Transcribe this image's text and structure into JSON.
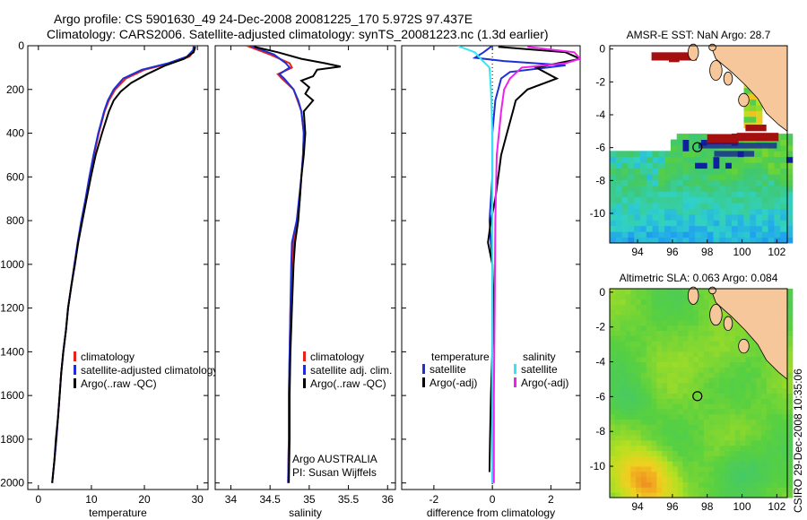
{
  "header": {
    "line1": "Argo profile: CS 5901630_49 24-Dec-2008 20081225_170 5.972S 97.437E",
    "line2": "Climatology: CARS2006. Satellite-adjusted climatology: synTS_20081223.nc (1.3d earlier)"
  },
  "side_text": "CSIRO 29-Dec-2008 10:35:06",
  "colors": {
    "climatology": "#e8231c",
    "satellite": "#1f2fd6",
    "argo": "#000000",
    "salinity_satellite": "#33e6f2",
    "salinity_argo": "#ee22ee",
    "land": "#f6c79b"
  },
  "chart_data": [
    {
      "id": "temperature",
      "type": "line",
      "xlabel": "temperature",
      "xlim": [
        -2,
        32
      ],
      "ylim": [
        2030,
        0
      ],
      "xticks": [
        "0",
        "10",
        "20",
        "30"
      ],
      "xtick_values": [
        0,
        10,
        20,
        30
      ],
      "yticks": [
        "0",
        "200",
        "400",
        "600",
        "800",
        "1000",
        "1200",
        "1400",
        "1600",
        "1800",
        "2000"
      ],
      "ytick_values": [
        0,
        200,
        400,
        600,
        800,
        1000,
        1200,
        1400,
        1600,
        1800,
        2000
      ],
      "legend": [
        "climatology",
        "satellite-adjusted climatology",
        "Argo(..raw -QC)"
      ],
      "series": [
        {
          "name": "climatology",
          "color_key": "climatology",
          "points": [
            [
              29.5,
              0
            ],
            [
              29.4,
              20
            ],
            [
              28.5,
              50
            ],
            [
              25,
              80
            ],
            [
              20,
              110
            ],
            [
              16.5,
              150
            ],
            [
              14.5,
              200
            ],
            [
              13.3,
              250
            ],
            [
              12.5,
              300
            ],
            [
              11.4,
              400
            ],
            [
              10.5,
              500
            ],
            [
              9.7,
              600
            ],
            [
              9,
              700
            ],
            [
              8.2,
              800
            ],
            [
              7.5,
              900
            ],
            [
              6.8,
              1000
            ],
            [
              6.2,
              1100
            ],
            [
              5.6,
              1200
            ],
            [
              5.2,
              1300
            ],
            [
              4.7,
              1400
            ],
            [
              4.3,
              1500
            ],
            [
              4,
              1600
            ],
            [
              3.7,
              1700
            ],
            [
              3.4,
              1800
            ],
            [
              3,
              1900
            ],
            [
              2.6,
              2000
            ]
          ]
        },
        {
          "name": "satellite-adjusted climatology",
          "color_key": "satellite",
          "points": [
            [
              29.3,
              0
            ],
            [
              29.2,
              20
            ],
            [
              28,
              50
            ],
            [
              24.5,
              80
            ],
            [
              19.5,
              110
            ],
            [
              16,
              150
            ],
            [
              14.2,
              200
            ],
            [
              13.1,
              250
            ],
            [
              12.4,
              300
            ],
            [
              11.3,
              400
            ],
            [
              10.4,
              500
            ],
            [
              9.6,
              600
            ],
            [
              8.9,
              700
            ],
            [
              8.1,
              800
            ],
            [
              7.4,
              900
            ],
            [
              6.8,
              1000
            ],
            [
              6.2,
              1100
            ],
            [
              5.6,
              1200
            ],
            [
              5.2,
              1300
            ],
            [
              4.7,
              1400
            ],
            [
              4.3,
              1500
            ],
            [
              4,
              1600
            ],
            [
              3.7,
              1700
            ],
            [
              3.4,
              1800
            ],
            [
              3,
              1900
            ],
            [
              2.6,
              2000
            ]
          ]
        },
        {
          "name": "Argo(..raw -QC)",
          "color_key": "argo",
          "points": [
            [
              29.6,
              5
            ],
            [
              29.3,
              30
            ],
            [
              27.5,
              60
            ],
            [
              24,
              90
            ],
            [
              20.5,
              130
            ],
            [
              17.5,
              170
            ],
            [
              15.5,
              210
            ],
            [
              14.2,
              250
            ],
            [
              13.3,
              300
            ],
            [
              12,
              400
            ],
            [
              10.8,
              500
            ],
            [
              9.9,
              600
            ],
            [
              9.1,
              700
            ],
            [
              8.3,
              800
            ],
            [
              7.5,
              900
            ],
            [
              6.9,
              1000
            ],
            [
              6.2,
              1100
            ],
            [
              5.6,
              1200
            ],
            [
              5.2,
              1300
            ],
            [
              4.7,
              1400
            ],
            [
              4.3,
              1500
            ],
            [
              4,
              1600
            ],
            [
              3.7,
              1700
            ],
            [
              3.3,
              1800
            ],
            [
              3,
              1900
            ],
            [
              2.6,
              2000
            ]
          ]
        }
      ]
    },
    {
      "id": "salinity",
      "type": "line",
      "xlabel": "salinity",
      "xlim": [
        33.8,
        36.1
      ],
      "ylim": [
        2030,
        0
      ],
      "xticks": [
        "34",
        "34.5",
        "35",
        "35.5",
        "36"
      ],
      "xtick_values": [
        34,
        34.5,
        35,
        35.5,
        36
      ],
      "legend": [
        "climatology",
        "satellite adj. clim.",
        "Argo(..raw -QC)"
      ],
      "annotation": [
        "Argo AUSTRALIA",
        "PI: Susan Wijffels"
      ],
      "series": [
        {
          "name": "climatology",
          "color_key": "climatology",
          "points": [
            [
              34.2,
              0
            ],
            [
              34.5,
              40
            ],
            [
              34.75,
              80
            ],
            [
              34.78,
              100
            ],
            [
              34.6,
              130
            ],
            [
              34.65,
              150
            ],
            [
              34.8,
              200
            ],
            [
              34.85,
              250
            ],
            [
              34.9,
              300
            ],
            [
              34.93,
              400
            ],
            [
              34.92,
              500
            ],
            [
              34.9,
              600
            ],
            [
              34.88,
              700
            ],
            [
              34.85,
              800
            ],
            [
              34.8,
              900
            ],
            [
              34.78,
              1000
            ],
            [
              34.76,
              1200
            ],
            [
              34.75,
              1400
            ],
            [
              34.74,
              1600
            ],
            [
              34.74,
              1800
            ],
            [
              34.73,
              2000
            ]
          ]
        },
        {
          "name": "satellite adj. clim.",
          "color_key": "satellite",
          "points": [
            [
              34.25,
              0
            ],
            [
              34.55,
              40
            ],
            [
              34.7,
              80
            ],
            [
              34.75,
              100
            ],
            [
              34.62,
              130
            ],
            [
              34.68,
              150
            ],
            [
              34.8,
              200
            ],
            [
              34.86,
              250
            ],
            [
              34.9,
              300
            ],
            [
              34.93,
              400
            ],
            [
              34.92,
              500
            ],
            [
              34.9,
              600
            ],
            [
              34.87,
              700
            ],
            [
              34.84,
              800
            ],
            [
              34.78,
              900
            ],
            [
              34.77,
              1000
            ],
            [
              34.76,
              1200
            ],
            [
              34.75,
              1400
            ],
            [
              34.74,
              1600
            ],
            [
              34.74,
              1800
            ],
            [
              34.73,
              2000
            ]
          ]
        },
        {
          "name": "Argo(..raw -QC)",
          "color_key": "argo",
          "points": [
            [
              34.3,
              5
            ],
            [
              34.6,
              30
            ],
            [
              34.9,
              60
            ],
            [
              35.2,
              80
            ],
            [
              35.4,
              95
            ],
            [
              35.1,
              110
            ],
            [
              35.05,
              140
            ],
            [
              34.9,
              160
            ],
            [
              35.0,
              190
            ],
            [
              34.95,
              220
            ],
            [
              35.05,
              250
            ],
            [
              34.93,
              300
            ],
            [
              34.95,
              400
            ],
            [
              34.93,
              500
            ],
            [
              34.9,
              600
            ],
            [
              34.88,
              700
            ],
            [
              34.86,
              800
            ],
            [
              34.82,
              900
            ],
            [
              34.8,
              1000
            ],
            [
              34.78,
              1200
            ],
            [
              34.76,
              1400
            ],
            [
              34.75,
              1600
            ],
            [
              34.75,
              1800
            ],
            [
              34.74,
              2000
            ]
          ]
        }
      ]
    },
    {
      "id": "difference",
      "type": "line",
      "xlabel": "difference from climatology",
      "xlim": [
        -3.1,
        3.0
      ],
      "ylim": [
        2030,
        0
      ],
      "xticks": [
        "-2",
        "0",
        "2"
      ],
      "xtick_values": [
        -2,
        0,
        2
      ],
      "legend_left_title": "temperature",
      "legend_right_title": "salinity",
      "legend_left": [
        "satellite",
        "Argo(-adj)"
      ],
      "legend_right": [
        "satellite",
        "Argo(-adj)"
      ],
      "series": [
        {
          "name": "temperature satellite",
          "color_key": "satellite",
          "points": [
            [
              0,
              0
            ],
            [
              -0.3,
              30
            ],
            [
              -0.6,
              55
            ],
            [
              0.4,
              70
            ],
            [
              2.5,
              90
            ],
            [
              0.6,
              120
            ],
            [
              0.3,
              150
            ],
            [
              0.1,
              250
            ],
            [
              0,
              400
            ],
            [
              0,
              600
            ],
            [
              -0.1,
              800
            ],
            [
              -0.05,
              900
            ],
            [
              0,
              1000
            ],
            [
              0,
              1500
            ],
            [
              0,
              2000
            ]
          ]
        },
        {
          "name": "temperature Argo(-adj)",
          "color_key": "argo",
          "points": [
            [
              0.2,
              5
            ],
            [
              2.5,
              30
            ],
            [
              3.0,
              60
            ],
            [
              1.5,
              100
            ],
            [
              2.2,
              150
            ],
            [
              1.2,
              200
            ],
            [
              0.8,
              250
            ],
            [
              0.7,
              300
            ],
            [
              0.5,
              400
            ],
            [
              0.3,
              500
            ],
            [
              0.2,
              600
            ],
            [
              0.1,
              700
            ],
            [
              -0.05,
              800
            ],
            [
              -0.15,
              900
            ],
            [
              0.0,
              1000
            ],
            [
              0.05,
              1200
            ],
            [
              0.0,
              1400
            ],
            [
              -0.05,
              1600
            ],
            [
              -0.08,
              1800
            ],
            [
              -0.1,
              1950
            ]
          ]
        },
        {
          "name": "salinity satellite",
          "color_key": "salinity_satellite",
          "points": [
            [
              -1.2,
              0
            ],
            [
              -0.6,
              30
            ],
            [
              -0.4,
              60
            ],
            [
              -0.1,
              100
            ],
            [
              -0.05,
              200
            ],
            [
              0,
              400
            ],
            [
              0,
              1000
            ],
            [
              0,
              2000
            ]
          ]
        },
        {
          "name": "salinity Argo(-adj)",
          "color_key": "salinity_argo",
          "points": [
            [
              1.2,
              5
            ],
            [
              2.8,
              30
            ],
            [
              3.0,
              60
            ],
            [
              2.5,
              80
            ],
            [
              1.0,
              100
            ],
            [
              0.6,
              150
            ],
            [
              0.4,
              200
            ],
            [
              0.3,
              300
            ],
            [
              0.15,
              500
            ],
            [
              0.1,
              800
            ],
            [
              0.08,
              1200
            ],
            [
              0.05,
              1600
            ],
            [
              0.05,
              2000
            ]
          ]
        }
      ]
    },
    {
      "id": "sst_map",
      "type": "heatmap",
      "title": "AMSR-E SST: NaN Argo: 28.7",
      "xlim": [
        92.4,
        102.6
      ],
      "ylim": [
        -11.8,
        0.2
      ],
      "xticks": [
        "94",
        "96",
        "98",
        "100",
        "102"
      ],
      "xtick_values": [
        94,
        96,
        98,
        100,
        102
      ],
      "yticks": [
        "0",
        "-2",
        "-4",
        "-6",
        "-8",
        "-10"
      ],
      "ytick_values": [
        0,
        -2,
        -4,
        -6,
        -8,
        -10
      ],
      "argo_position": [
        97.437,
        -5.972
      ]
    },
    {
      "id": "sla_map",
      "type": "heatmap",
      "title": "Altimetric SLA: 0.063 Argo: 0.084",
      "xlim": [
        92.4,
        102.6
      ],
      "ylim": [
        -11.8,
        0.2
      ],
      "xticks": [
        "94",
        "96",
        "98",
        "100",
        "102"
      ],
      "xtick_values": [
        94,
        96,
        98,
        100,
        102
      ],
      "yticks": [
        "0",
        "-2",
        "-4",
        "-6",
        "-8",
        "-10"
      ],
      "ytick_values": [
        0,
        -2,
        -4,
        -6,
        -8,
        -10
      ],
      "argo_position": [
        97.437,
        -5.972
      ]
    }
  ]
}
